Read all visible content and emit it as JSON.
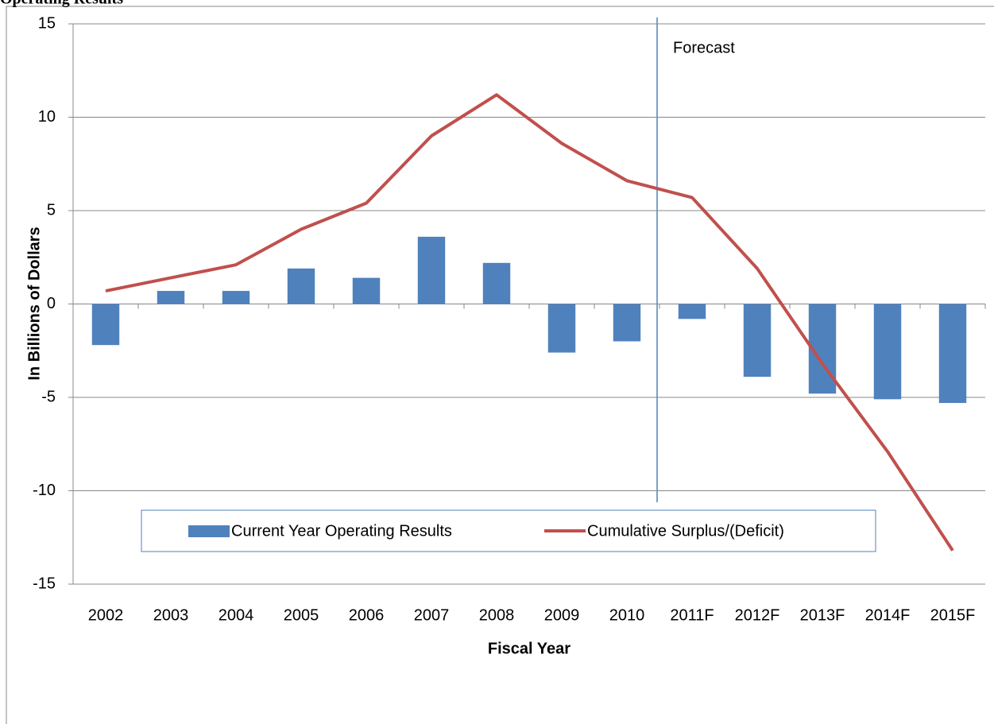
{
  "chart_data": {
    "type": "bar-line",
    "title": "Operating Results",
    "x_label": "Fiscal Year",
    "y_label": "In Billions of Dollars",
    "annotation": "Forecast",
    "categories": [
      "2002",
      "2003",
      "2004",
      "2005",
      "2006",
      "2007",
      "2008",
      "2009",
      "2010",
      "2011F",
      "2012F",
      "2013F",
      "2014F",
      "2015F"
    ],
    "series": [
      {
        "name": "Current Year Operating Results",
        "type": "bar",
        "color": "#4f81bd",
        "values": [
          -2.2,
          0.7,
          0.7,
          1.9,
          1.4,
          3.6,
          2.2,
          -2.6,
          -2.0,
          -0.8,
          -3.9,
          -4.8,
          -5.1,
          -5.3
        ]
      },
      {
        "name": "Cumulative Surplus/(Deficit)",
        "type": "line",
        "color": "#c0504d",
        "values": [
          0.7,
          1.4,
          2.1,
          4.0,
          5.4,
          9.0,
          11.2,
          8.6,
          6.6,
          5.7,
          1.9,
          -3.2,
          -7.9,
          -13.2
        ]
      }
    ],
    "ylim": [
      -15,
      15
    ],
    "yticks": [
      -15,
      -10,
      -5,
      0,
      5,
      10,
      15
    ],
    "grid": true
  }
}
